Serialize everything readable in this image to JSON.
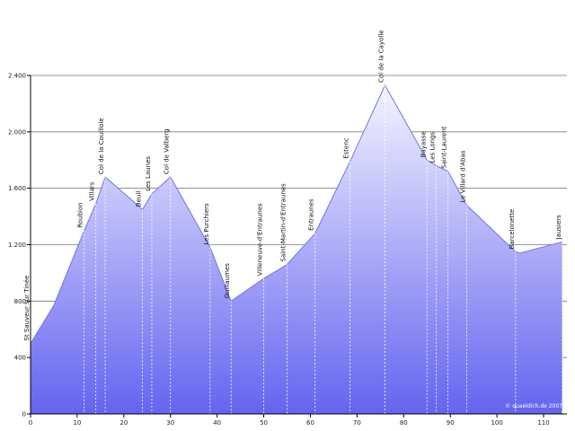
{
  "chart_data": {
    "type": "area",
    "title": "",
    "xlabel": "",
    "ylabel": "",
    "xlim": [
      0,
      115
    ],
    "ylim": [
      0,
      2400
    ],
    "x_ticks": [
      {
        "value": 0,
        "label": "0"
      },
      {
        "value": 10,
        "label": "10"
      },
      {
        "value": 20,
        "label": "20"
      },
      {
        "value": 30,
        "label": "30"
      },
      {
        "value": 40,
        "label": "40"
      },
      {
        "value": 50,
        "label": "50"
      },
      {
        "value": 60,
        "label": "60"
      },
      {
        "value": 70,
        "label": "70"
      },
      {
        "value": 80,
        "label": "80"
      },
      {
        "value": 90,
        "label": "90"
      },
      {
        "value": 100,
        "label": "100"
      },
      {
        "value": 110,
        "label": "110"
      }
    ],
    "y_ticks": [
      {
        "value": 0,
        "label": "0"
      },
      {
        "value": 400,
        "label": "400"
      },
      {
        "value": 800,
        "label": "800"
      },
      {
        "value": 1200,
        "label": "1.200"
      },
      {
        "value": 1600,
        "label": "1.600"
      },
      {
        "value": 2000,
        "label": "2.000"
      },
      {
        "value": 2400,
        "label": "2.400"
      }
    ],
    "grid": true,
    "fill_top_color": "#f4f4ff",
    "fill_bottom_color": "#6464f0",
    "line_color": "#7474e6",
    "grid_color": "#777777",
    "marker_color": "#ffffff",
    "x": [
      0,
      5,
      11.5,
      14,
      16,
      24,
      26,
      30,
      38.5,
      43,
      50,
      55,
      61,
      68.5,
      76,
      85,
      87,
      89.5,
      93.5,
      104,
      105,
      114
    ],
    "y": [
      500,
      770,
      1300,
      1490,
      1680,
      1450,
      1560,
      1680,
      1180,
      800,
      960,
      1060,
      1280,
      1790,
      2330,
      1800,
      1760,
      1720,
      1480,
      1150,
      1140,
      1220
    ],
    "waypoints": [
      {
        "name": "St Sauveur sur Tinée",
        "x": 0,
        "y": 500
      },
      {
        "name": "Roubion",
        "x": 11.5,
        "y": 1300
      },
      {
        "name": "Villars",
        "x": 14,
        "y": 1490
      },
      {
        "name": "Col de la Couillole",
        "x": 16,
        "y": 1680
      },
      {
        "name": "Beuil",
        "x": 24,
        "y": 1450
      },
      {
        "name": "Les Launes",
        "x": 26,
        "y": 1560
      },
      {
        "name": "Col de Valberg",
        "x": 30,
        "y": 1680
      },
      {
        "name": "Les Purchiers",
        "x": 38.5,
        "y": 1180
      },
      {
        "name": "Guillaumes",
        "x": 43,
        "y": 800
      },
      {
        "name": "Villeneuve-d'Entraunes",
        "x": 50,
        "y": 960
      },
      {
        "name": "Saint-Martin-d'Entraunes",
        "x": 55,
        "y": 1060
      },
      {
        "name": "Entraunes",
        "x": 61,
        "y": 1280
      },
      {
        "name": "Estenc",
        "x": 68.5,
        "y": 1790
      },
      {
        "name": "Col de la Cayolle",
        "x": 76,
        "y": 2330
      },
      {
        "name": "Bayasse",
        "x": 85,
        "y": 1800
      },
      {
        "name": "Les Longs",
        "x": 87,
        "y": 1760
      },
      {
        "name": "Saint-Laurent",
        "x": 89.5,
        "y": 1720
      },
      {
        "name": "Le Villard d'Abas",
        "x": 93.5,
        "y": 1480
      },
      {
        "name": "Barcelonette",
        "x": 104,
        "y": 1150
      },
      {
        "name": "Jausiers",
        "x": 114,
        "y": 1220
      }
    ],
    "credit": "© quaeldich.de 2007"
  }
}
